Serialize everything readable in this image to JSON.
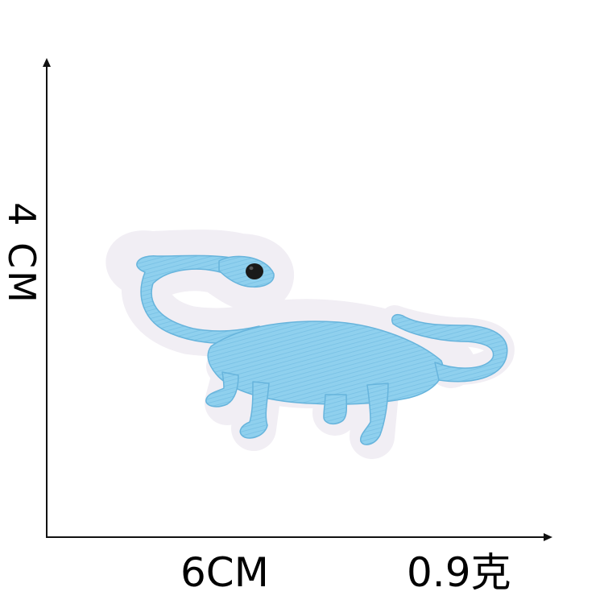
{
  "dimensions": {
    "height_label": "4 CM",
    "width_label": "6CM",
    "weight_label": "0.9克"
  },
  "patch": {
    "subject": "blue-dinosaur-embroidered-patch",
    "fill_color": "#8fd0ee",
    "border_color": "#f1eef4",
    "eye_color": "#1a1a1a"
  }
}
